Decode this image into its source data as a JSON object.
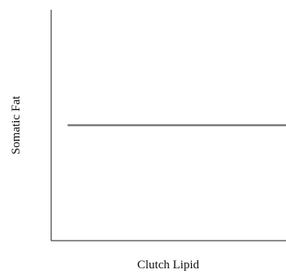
{
  "chart_data": {
    "type": "line",
    "title": "",
    "xlabel": "Clutch Lipid",
    "ylabel": "Somatic Fat",
    "xlim": [
      0,
      1
    ],
    "ylim": [
      0,
      1
    ],
    "grid": false,
    "series": [
      {
        "x": [
          0.07,
          1.0
        ],
        "values": [
          0.5,
          0.5
        ]
      }
    ],
    "colors": {
      "axis": "#1a1a1a",
      "line": "#7a7a7a"
    }
  }
}
